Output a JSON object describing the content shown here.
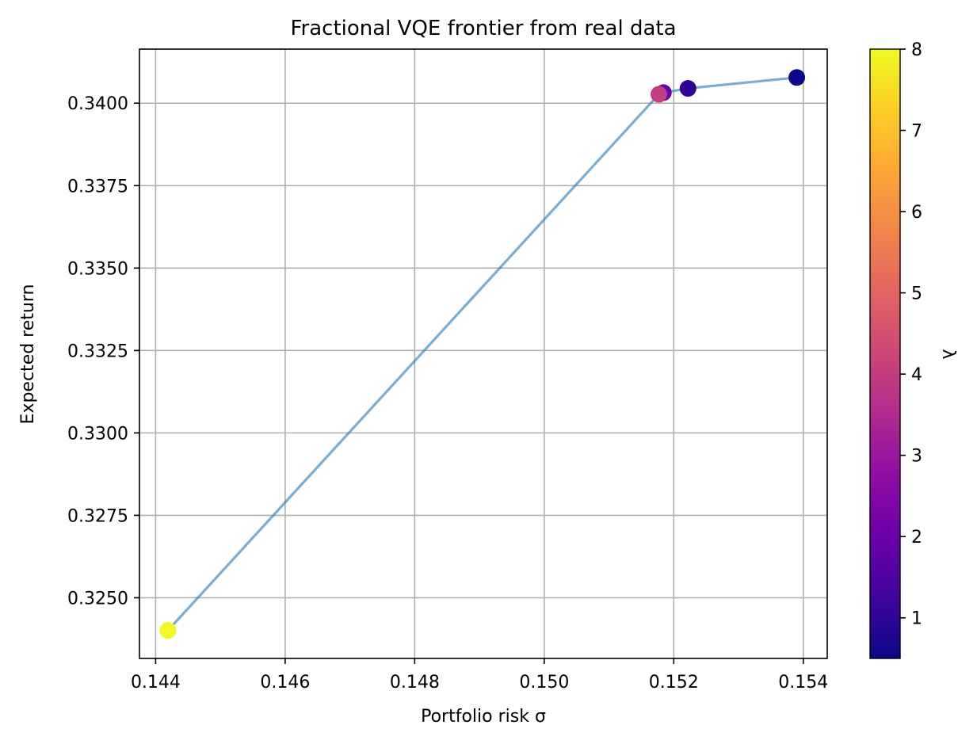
{
  "chart_data": {
    "type": "scatter",
    "title": "Fractional VQE frontier from real data",
    "xlabel": "Portfolio risk σ",
    "ylabel": "Expected return",
    "xlim": [
      0.14375,
      0.15437
    ],
    "ylim": [
      0.32316,
      0.34164
    ],
    "x_ticks": [
      0.144,
      0.146,
      0.148,
      0.15,
      0.152,
      0.154
    ],
    "x_tick_labels": [
      "0.144",
      "0.146",
      "0.148",
      "0.150",
      "0.152",
      "0.154"
    ],
    "y_ticks": [
      0.325,
      0.3275,
      0.33,
      0.3325,
      0.335,
      0.3375,
      0.34
    ],
    "y_tick_labels": [
      "0.3250",
      "0.3275",
      "0.3300",
      "0.3325",
      "0.3350",
      "0.3375",
      "0.3400"
    ],
    "grid": true,
    "line": {
      "color": "#1f77b4",
      "alpha": 0.6
    },
    "points": [
      {
        "x": 0.1539,
        "y": 0.34078,
        "lambda": 0.5
      },
      {
        "x": 0.15222,
        "y": 0.34045,
        "lambda": 1.0
      },
      {
        "x": 0.15184,
        "y": 0.34032,
        "lambda": 2.0
      },
      {
        "x": 0.15177,
        "y": 0.34027,
        "lambda": 4.0
      },
      {
        "x": 0.14419,
        "y": 0.32401,
        "lambda": 8.0
      }
    ],
    "colorbar": {
      "label": "λ",
      "colormap": "plasma",
      "range": [
        0.5,
        8
      ],
      "ticks": [
        1,
        2,
        3,
        4,
        5,
        6,
        7,
        8
      ],
      "tick_labels": [
        "1",
        "2",
        "3",
        "4",
        "5",
        "6",
        "7",
        "8"
      ],
      "stops": [
        "#0d0887",
        "#41049d",
        "#6a00a8",
        "#8f0da4",
        "#b12a90",
        "#cc4778",
        "#e16462",
        "#f2844b",
        "#fca636",
        "#fcce25",
        "#f0f921"
      ]
    }
  }
}
